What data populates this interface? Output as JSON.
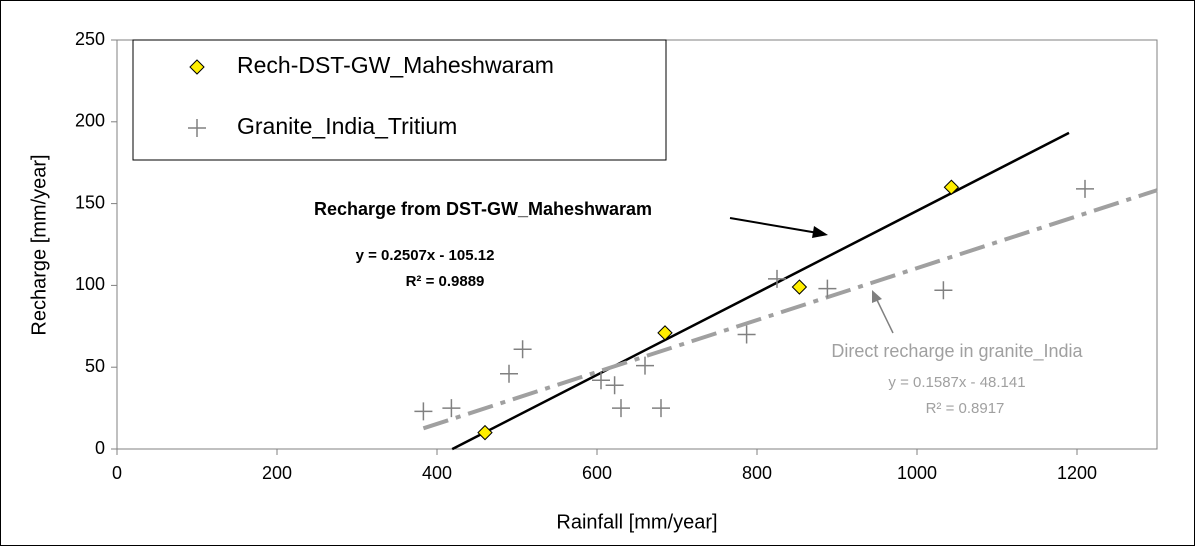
{
  "chart_data": {
    "type": "scatter",
    "xlabel": "Rainfall [mm/year]",
    "ylabel": "Recharge [mm/year]",
    "xlim": [
      0,
      1300
    ],
    "xticks": [
      0,
      200,
      400,
      600,
      800,
      1000,
      1200
    ],
    "ylim": [
      0,
      250
    ],
    "yticks": [
      0,
      50,
      100,
      150,
      200,
      250
    ],
    "legend": "upper left",
    "series": [
      {
        "name": "Rech-DST-GW_Maheshwaram",
        "color": "#ffee00",
        "marker": "diamond",
        "x": [
          460,
          685,
          853,
          1043
        ],
        "values": [
          10,
          71,
          99,
          160
        ]
      },
      {
        "name": "Granite_India_Tritium",
        "color": "#808080",
        "marker": "plus",
        "x": [
          383,
          418,
          490,
          507,
          605,
          622,
          630,
          660,
          680,
          787,
          825,
          888,
          1033,
          1210
        ],
        "values": [
          23,
          25,
          46,
          61,
          42,
          39,
          25,
          51,
          25,
          70,
          104,
          98,
          97,
          159
        ]
      }
    ],
    "trendlines": [
      {
        "annotation": "Recharge from DST-GW_Maheshwaram",
        "equation": "y = 0.2507x - 105.12",
        "r2": "R² = 0.9889",
        "slope": 0.2507,
        "intercept": -105.12,
        "x_range": [
          419,
          1190
        ],
        "color": "#000000"
      },
      {
        "annotation": "Direct recharge in granite_India",
        "equation": "y = 0.1587x - 48.141",
        "r2": "R² = 0.8917",
        "slope": 0.1587,
        "intercept": -48.141,
        "x_range": [
          383,
          1300
        ],
        "color": "#a0a0a0"
      }
    ]
  }
}
